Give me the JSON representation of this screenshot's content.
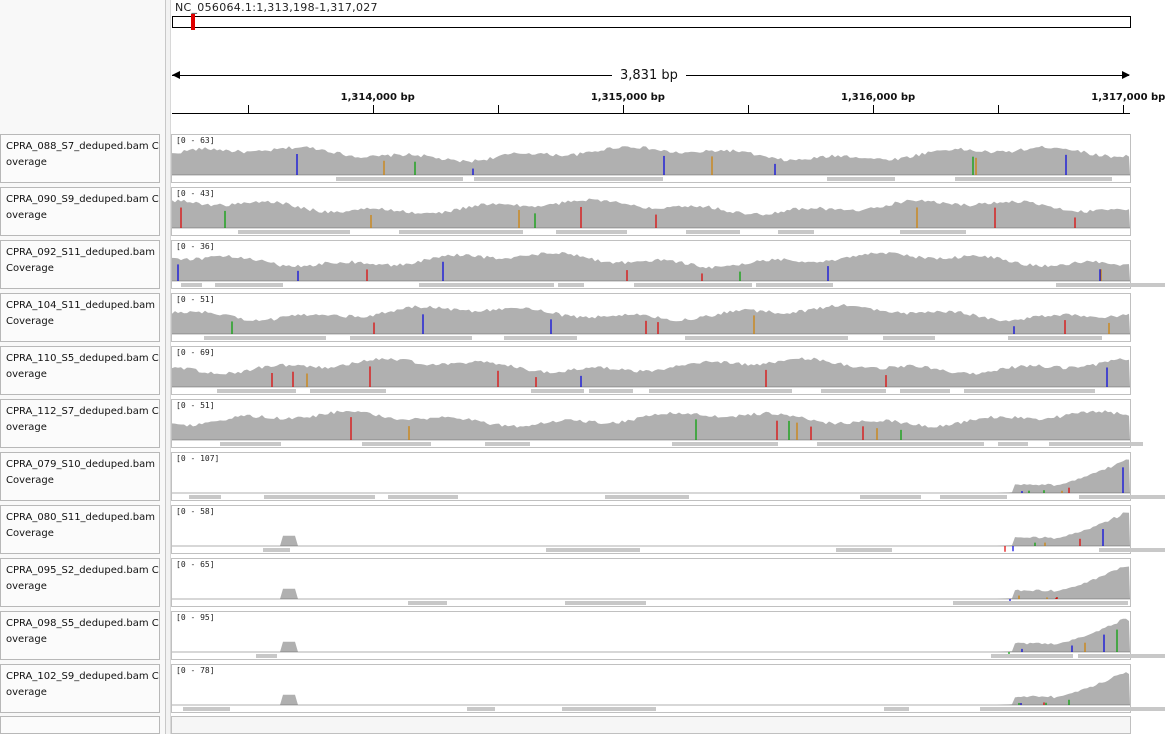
{
  "header": {
    "locus": "NC_056064.1:1,313,198-1,317,027",
    "span_label": "3,831 bp"
  },
  "ruler": {
    "start": 1313198,
    "end": 1317027,
    "major_ticks": [
      {
        "pos": 1314000,
        "label": "1,314,000 bp"
      },
      {
        "pos": 1315000,
        "label": "1,315,000 bp"
      },
      {
        "pos": 1316000,
        "label": "1,316,000 bp"
      },
      {
        "pos": 1317000,
        "label": "1,317,000 bp"
      }
    ],
    "minor_ticks": [
      1313500,
      1314500,
      1315500,
      1316500
    ]
  },
  "tracks": [
    {
      "name": "CPRA_088_S7_deduped.bam Coverage",
      "range": "[0 - 63]",
      "profile": "uniform"
    },
    {
      "name": "CPRA_090_S9_deduped.bam Coverage",
      "range": "[0 - 43]",
      "profile": "uniform"
    },
    {
      "name": "CPRA_092_S11_deduped.bam Coverage",
      "range": "[0 - 36]",
      "profile": "uniform"
    },
    {
      "name": "CPRA_104_S11_deduped.bam Coverage",
      "range": "[0 - 51]",
      "profile": "uniform"
    },
    {
      "name": "CPRA_110_S5_deduped.bam Coverage",
      "range": "[0 - 69]",
      "profile": "uniform"
    },
    {
      "name": "CPRA_112_S7_deduped.bam Coverage",
      "range": "[0 - 51]",
      "profile": "uniform"
    },
    {
      "name": "CPRA_079_S10_deduped.bam Coverage",
      "range": "[0 - 107]",
      "profile": "tail"
    },
    {
      "name": "CPRA_080_S11_deduped.bam Coverage",
      "range": "[0 - 58]",
      "profile": "tail"
    },
    {
      "name": "CPRA_095_S2_deduped.bam Coverage",
      "range": "[0 - 65]",
      "profile": "tail"
    },
    {
      "name": "CPRA_098_S5_deduped.bam Coverage",
      "range": "[0 - 95]",
      "profile": "tail"
    },
    {
      "name": "CPRA_102_S9_deduped.bam Coverage",
      "range": "[0 - 78]",
      "profile": "tail"
    }
  ],
  "colors": {
    "coverage": "#b0b0b0",
    "mismatch_a": "#00a000",
    "mismatch_c": "#0000e0",
    "mismatch_g": "#d08000",
    "mismatch_t": "#e00000",
    "deletion": "#8030c0",
    "alignment": "#c8c8c8"
  }
}
